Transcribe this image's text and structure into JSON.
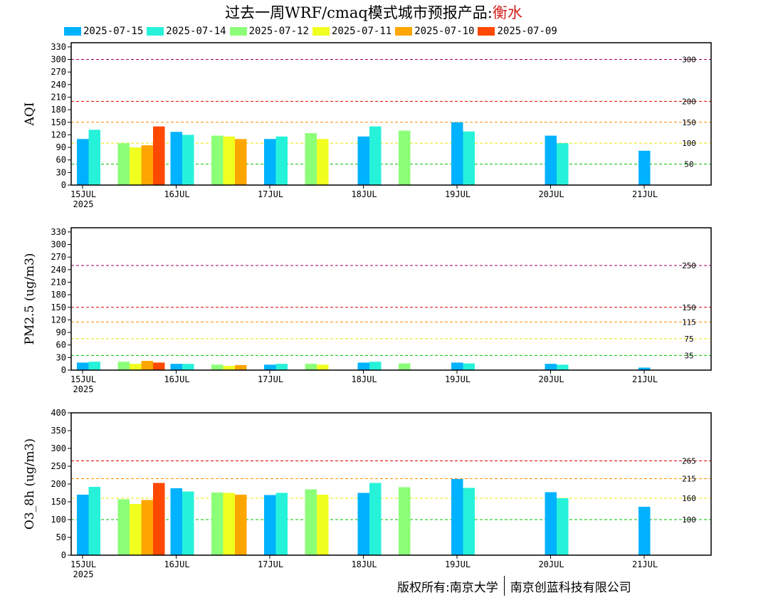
{
  "header": {
    "title_prefix": "过去一周WRF/cmaq模式城市预报产品:",
    "city": "衡水"
  },
  "legend": {
    "items": [
      {
        "label": "2025-07-15",
        "color": "#00b2ff"
      },
      {
        "label": "2025-07-14",
        "color": "#26f2da"
      },
      {
        "label": "2025-07-12",
        "color": "#8cff78"
      },
      {
        "label": "2025-07-11",
        "color": "#f0ff20"
      },
      {
        "label": "2025-07-10",
        "color": "#ffa500"
      },
      {
        "label": "2025-07-09",
        "color": "#ff4800"
      }
    ]
  },
  "footer": {
    "copyright_left": "版权所有:南京大学",
    "copyright_right": "南京创蓝科技有限公司"
  },
  "chart_data": [
    {
      "type": "bar",
      "ylabel": "AQI",
      "ylim": [
        0,
        340
      ],
      "yticks": [
        0,
        30,
        60,
        90,
        120,
        150,
        180,
        210,
        240,
        270,
        300,
        330
      ],
      "x_categories": [
        "15JUL",
        "16JUL",
        "17JUL",
        "18JUL",
        "19JUL",
        "20JUL",
        "21JUL"
      ],
      "x_sublabel": "2025",
      "thresholds": [
        {
          "value": 50,
          "label": "50",
          "color": "#00c000"
        },
        {
          "value": 100,
          "label": "100",
          "color": "#e8e800"
        },
        {
          "value": 150,
          "label": "150",
          "color": "#ff8c00"
        },
        {
          "value": 200,
          "label": "200",
          "color": "#e00000"
        },
        {
          "value": 300,
          "label": "300",
          "color": "#a0005a"
        }
      ],
      "groups": [
        {
          "day": "15JUL",
          "half": "am",
          "bars": [
            {
              "series": "2025-07-15",
              "value": 110
            },
            {
              "series": "2025-07-14",
              "value": 132
            }
          ]
        },
        {
          "day": "15JUL",
          "half": "pm",
          "bars": [
            {
              "series": "2025-07-12",
              "value": 100
            },
            {
              "series": "2025-07-11",
              "value": 90
            },
            {
              "series": "2025-07-10",
              "value": 95
            },
            {
              "series": "2025-07-09",
              "value": 140
            }
          ]
        },
        {
          "day": "16JUL",
          "half": "am",
          "bars": [
            {
              "series": "2025-07-15",
              "value": 127
            },
            {
              "series": "2025-07-14",
              "value": 120
            }
          ]
        },
        {
          "day": "16JUL",
          "half": "pm",
          "bars": [
            {
              "series": "2025-07-12",
              "value": 118
            },
            {
              "series": "2025-07-11",
              "value": 116
            },
            {
              "series": "2025-07-10",
              "value": 110
            }
          ]
        },
        {
          "day": "17JUL",
          "half": "am",
          "bars": [
            {
              "series": "2025-07-15",
              "value": 110
            },
            {
              "series": "2025-07-14",
              "value": 116
            }
          ]
        },
        {
          "day": "17JUL",
          "half": "pm",
          "bars": [
            {
              "series": "2025-07-12",
              "value": 124
            },
            {
              "series": "2025-07-11",
              "value": 110
            }
          ]
        },
        {
          "day": "18JUL",
          "half": "am",
          "bars": [
            {
              "series": "2025-07-15",
              "value": 116
            },
            {
              "series": "2025-07-14",
              "value": 140
            }
          ]
        },
        {
          "day": "18JUL",
          "half": "pm",
          "bars": [
            {
              "series": "2025-07-12",
              "value": 130
            }
          ]
        },
        {
          "day": "19JUL",
          "half": "am",
          "bars": [
            {
              "series": "2025-07-15",
              "value": 150
            },
            {
              "series": "2025-07-14",
              "value": 128
            }
          ]
        },
        {
          "day": "20JUL",
          "half": "am",
          "bars": [
            {
              "series": "2025-07-15",
              "value": 118
            },
            {
              "series": "2025-07-14",
              "value": 100
            }
          ]
        },
        {
          "day": "21JUL",
          "half": "am",
          "bars": [
            {
              "series": "2025-07-15",
              "value": 82
            }
          ]
        }
      ]
    },
    {
      "type": "bar",
      "ylabel": "PM2.5 (ug/m3)",
      "ylim": [
        0,
        340
      ],
      "yticks": [
        0,
        30,
        60,
        90,
        120,
        150,
        180,
        210,
        240,
        270,
        300,
        330
      ],
      "x_categories": [
        "15JUL",
        "16JUL",
        "17JUL",
        "18JUL",
        "19JUL",
        "20JUL",
        "21JUL"
      ],
      "x_sublabel": "2025",
      "thresholds": [
        {
          "value": 35,
          "label": "35",
          "color": "#00c000"
        },
        {
          "value": 75,
          "label": "75",
          "color": "#e8e800"
        },
        {
          "value": 115,
          "label": "115",
          "color": "#ff8c00"
        },
        {
          "value": 150,
          "label": "150",
          "color": "#e00000"
        },
        {
          "value": 250,
          "label": "250",
          "color": "#a0005a"
        }
      ],
      "groups": [
        {
          "day": "15JUL",
          "half": "am",
          "bars": [
            {
              "series": "2025-07-15",
              "value": 18
            },
            {
              "series": "2025-07-14",
              "value": 20
            }
          ]
        },
        {
          "day": "15JUL",
          "half": "pm",
          "bars": [
            {
              "series": "2025-07-12",
              "value": 20
            },
            {
              "series": "2025-07-11",
              "value": 15
            },
            {
              "series": "2025-07-10",
              "value": 22
            },
            {
              "series": "2025-07-09",
              "value": 18
            }
          ]
        },
        {
          "day": "16JUL",
          "half": "am",
          "bars": [
            {
              "series": "2025-07-15",
              "value": 15
            },
            {
              "series": "2025-07-14",
              "value": 15
            }
          ]
        },
        {
          "day": "16JUL",
          "half": "pm",
          "bars": [
            {
              "series": "2025-07-12",
              "value": 13
            },
            {
              "series": "2025-07-11",
              "value": 10
            },
            {
              "series": "2025-07-10",
              "value": 12
            }
          ]
        },
        {
          "day": "17JUL",
          "half": "am",
          "bars": [
            {
              "series": "2025-07-15",
              "value": 13
            },
            {
              "series": "2025-07-14",
              "value": 15
            }
          ]
        },
        {
          "day": "17JUL",
          "half": "pm",
          "bars": [
            {
              "series": "2025-07-12",
              "value": 15
            },
            {
              "series": "2025-07-11",
              "value": 13
            }
          ]
        },
        {
          "day": "18JUL",
          "half": "am",
          "bars": [
            {
              "series": "2025-07-15",
              "value": 18
            },
            {
              "series": "2025-07-14",
              "value": 20
            }
          ]
        },
        {
          "day": "18JUL",
          "half": "pm",
          "bars": [
            {
              "series": "2025-07-12",
              "value": 16
            }
          ]
        },
        {
          "day": "19JUL",
          "half": "am",
          "bars": [
            {
              "series": "2025-07-15",
              "value": 18
            },
            {
              "series": "2025-07-14",
              "value": 16
            }
          ]
        },
        {
          "day": "20JUL",
          "half": "am",
          "bars": [
            {
              "series": "2025-07-15",
              "value": 15
            },
            {
              "series": "2025-07-14",
              "value": 13
            }
          ]
        },
        {
          "day": "21JUL",
          "half": "am",
          "bars": [
            {
              "series": "2025-07-15",
              "value": 6
            }
          ]
        }
      ]
    },
    {
      "type": "bar",
      "ylabel": "O3_8h (ug/m3)",
      "ylim": [
        0,
        400
      ],
      "yticks": [
        0,
        50,
        100,
        150,
        200,
        250,
        300,
        350,
        400
      ],
      "x_categories": [
        "15JUL",
        "16JUL",
        "17JUL",
        "18JUL",
        "19JUL",
        "20JUL",
        "21JUL"
      ],
      "x_sublabel": "2025",
      "thresholds": [
        {
          "value": 100,
          "label": "100",
          "color": "#00c000"
        },
        {
          "value": 160,
          "label": "160",
          "color": "#e8e800"
        },
        {
          "value": 215,
          "label": "215",
          "color": "#ff8c00"
        },
        {
          "value": 265,
          "label": "265",
          "color": "#e00000"
        }
      ],
      "groups": [
        {
          "day": "15JUL",
          "half": "am",
          "bars": [
            {
              "series": "2025-07-15",
              "value": 170
            },
            {
              "series": "2025-07-14",
              "value": 192
            }
          ]
        },
        {
          "day": "15JUL",
          "half": "pm",
          "bars": [
            {
              "series": "2025-07-12",
              "value": 157
            },
            {
              "series": "2025-07-11",
              "value": 144
            },
            {
              "series": "2025-07-10",
              "value": 155
            },
            {
              "series": "2025-07-09",
              "value": 203
            }
          ]
        },
        {
          "day": "16JUL",
          "half": "am",
          "bars": [
            {
              "series": "2025-07-15",
              "value": 188
            },
            {
              "series": "2025-07-14",
              "value": 179
            }
          ]
        },
        {
          "day": "16JUL",
          "half": "pm",
          "bars": [
            {
              "series": "2025-07-12",
              "value": 176
            },
            {
              "series": "2025-07-11",
              "value": 175
            },
            {
              "series": "2025-07-10",
              "value": 170
            }
          ]
        },
        {
          "day": "17JUL",
          "half": "am",
          "bars": [
            {
              "series": "2025-07-15",
              "value": 169
            },
            {
              "series": "2025-07-14",
              "value": 175
            }
          ]
        },
        {
          "day": "17JUL",
          "half": "pm",
          "bars": [
            {
              "series": "2025-07-12",
              "value": 185
            },
            {
              "series": "2025-07-11",
              "value": 170
            }
          ]
        },
        {
          "day": "18JUL",
          "half": "am",
          "bars": [
            {
              "series": "2025-07-15",
              "value": 175
            },
            {
              "series": "2025-07-14",
              "value": 203
            }
          ]
        },
        {
          "day": "18JUL",
          "half": "pm",
          "bars": [
            {
              "series": "2025-07-12",
              "value": 191
            }
          ]
        },
        {
          "day": "19JUL",
          "half": "am",
          "bars": [
            {
              "series": "2025-07-15",
              "value": 214
            },
            {
              "series": "2025-07-14",
              "value": 189
            }
          ]
        },
        {
          "day": "20JUL",
          "half": "am",
          "bars": [
            {
              "series": "2025-07-15",
              "value": 177
            },
            {
              "series": "2025-07-14",
              "value": 160
            }
          ]
        },
        {
          "day": "21JUL",
          "half": "am",
          "bars": [
            {
              "series": "2025-07-15",
              "value": 136
            }
          ]
        }
      ]
    }
  ]
}
